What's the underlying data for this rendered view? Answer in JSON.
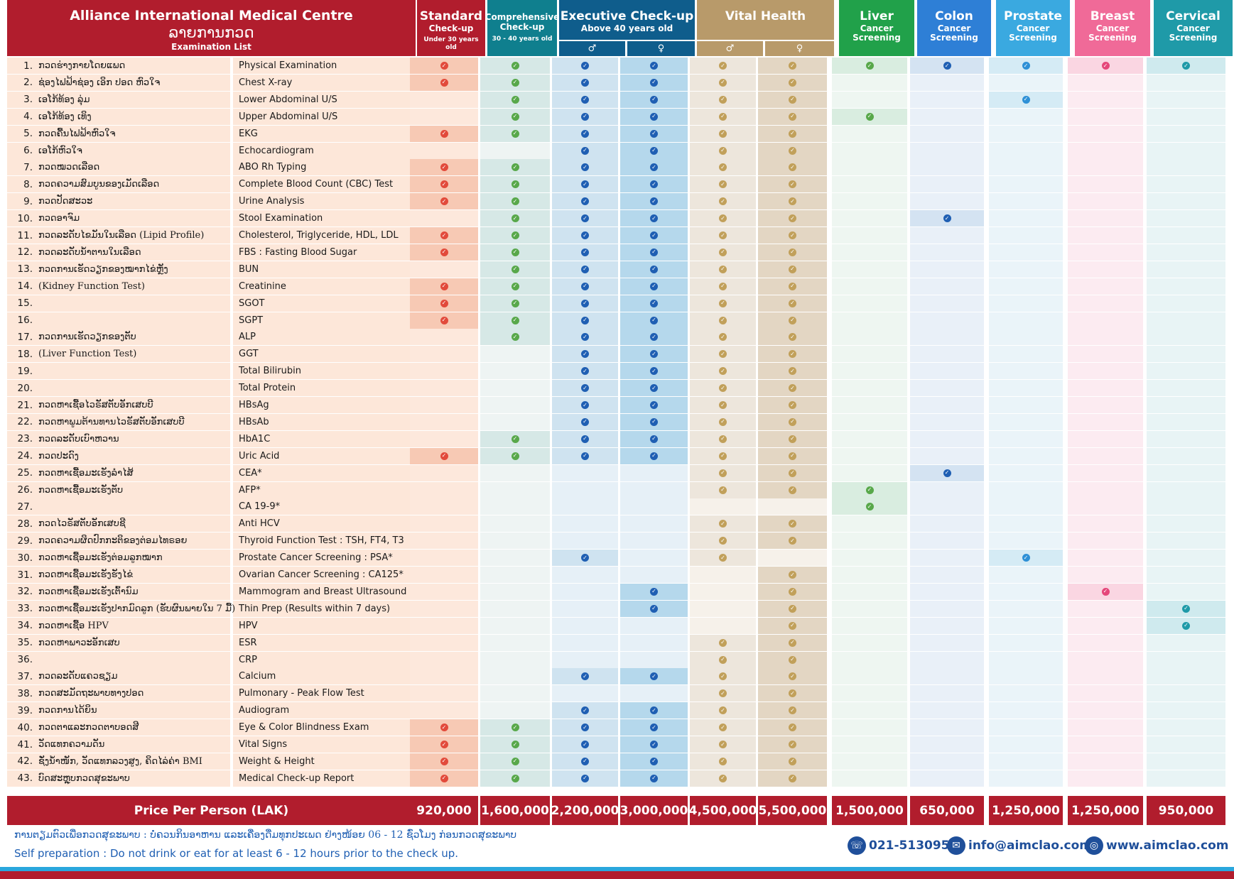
{
  "header": {
    "title": "Alliance International Medical Centre",
    "title_lao": "ລາຍການກວດ",
    "subtitle": "Examination List"
  },
  "packages": [
    {
      "name": "Standard",
      "line1": "Check-up",
      "line2": "Under 30 years old",
      "color": "#b11d2d",
      "fill": "#f7c9b4",
      "mark": "#e24a3b"
    },
    {
      "name": "",
      "line1": "Comprehensive",
      "line2": "Check-up",
      "line3": "30 - 40 years old",
      "color": "#0f7f8e",
      "fill": "#d6e8e6",
      "mark": "#58a84a"
    },
    {
      "name": "Executive Check-up",
      "line1": "Above 40 years old",
      "color": "#0f5d8c",
      "fill": "#cfe3f0",
      "mark": "#1f5fb3"
    },
    {
      "name": "Vital Health",
      "color": "#b89a6a",
      "fill": "#ede6dc",
      "mark": "#c1a05a"
    },
    {
      "name": "Liver",
      "line1": "Cancer",
      "line2": "Screening",
      "color": "#21a14a",
      "fill": "#d9ede0",
      "mark": "#58a84a"
    },
    {
      "name": "Colon",
      "line1": "Cancer",
      "line2": "Screening",
      "color": "#2e7fd6",
      "fill": "#d4e3f2",
      "mark": "#1f5fb3"
    },
    {
      "name": "Prostate",
      "line1": "Cancer",
      "line2": "Screening",
      "color": "#3aa9e0",
      "fill": "#d5ebf5",
      "mark": "#2e90d6"
    },
    {
      "name": "Breast",
      "line1": "Cancer",
      "line2": "Screening",
      "color": "#f06a98",
      "fill": "#fad6e2",
      "mark": "#e5467a"
    },
    {
      "name": "Cervical",
      "line1": "Cancer",
      "line2": "Screening",
      "color": "#1f9aa8",
      "fill": "#cfeaee",
      "mark": "#1f9aa8"
    }
  ],
  "gender_icons": {
    "male": "male-icon",
    "female": "female-icon"
  },
  "price_label": "Price Per Person (LAK)",
  "prices": [
    "920,000",
    "1,600,000",
    "2,200,000",
    "3,000,000",
    "4,500,000",
    "5,500,000",
    "1,500,000",
    "650,000",
    "1,250,000",
    "1,250,000",
    "950,000"
  ],
  "rows": [
    {
      "n": "1.",
      "lao": "ກວດຮ່າງກາຍໂດຍແພດ",
      "en": "Physical Examination",
      "m": [
        1,
        1,
        1,
        1,
        1,
        1,
        1,
        1,
        1,
        1,
        1
      ]
    },
    {
      "n": "2.",
      "lao": "ຊ່ອງໄຟຟ້າຊ່ອງ ເອິກ ປອດ ຫົວໃຈ",
      "en": "Chest X-ray",
      "m": [
        1,
        1,
        1,
        1,
        1,
        1,
        0,
        0,
        0,
        0,
        0
      ]
    },
    {
      "n": "3.",
      "lao": "ເອໂກ້ທ້ອງ ລຸ່ມ",
      "en": "Lower Abdominal U/S",
      "m": [
        0,
        1,
        1,
        1,
        1,
        1,
        0,
        0,
        1,
        0,
        0
      ]
    },
    {
      "n": "4.",
      "lao": "ເອໂກ້ທ້ອງ ເທິງ",
      "en": "Upper Abdominal U/S",
      "m": [
        0,
        1,
        1,
        1,
        1,
        1,
        1,
        0,
        0,
        0,
        0
      ]
    },
    {
      "n": "5.",
      "lao": "ກວດຄື້ນໄຟຟ້າຫົວໃຈ",
      "en": "EKG",
      "m": [
        1,
        1,
        1,
        1,
        1,
        1,
        0,
        0,
        0,
        0,
        0
      ]
    },
    {
      "n": "6.",
      "lao": "ເອໂກ້ຫົວໃຈ",
      "en": "Echocardiogram",
      "m": [
        0,
        0,
        1,
        1,
        1,
        1,
        0,
        0,
        0,
        0,
        0
      ]
    },
    {
      "n": "7.",
      "lao": "ກວດໝວດເລືອດ",
      "en": "ABO Rh Typing",
      "m": [
        1,
        1,
        1,
        1,
        1,
        1,
        0,
        0,
        0,
        0,
        0
      ]
    },
    {
      "n": "8.",
      "lao": "ກວດຄວາມສົມບູນຂອງເມັດເລືອດ",
      "en": "Complete Blood Count (CBC) Test",
      "m": [
        1,
        1,
        1,
        1,
        1,
        1,
        0,
        0,
        0,
        0,
        0
      ]
    },
    {
      "n": "9.",
      "lao": "ກວດປັດສະວະ",
      "en": "Urine Analysis",
      "m": [
        1,
        1,
        1,
        1,
        1,
        1,
        0,
        0,
        0,
        0,
        0
      ]
    },
    {
      "n": "10.",
      "lao": "ກວດອາຈົມ",
      "en": "Stool Examination",
      "m": [
        0,
        1,
        1,
        1,
        1,
        1,
        0,
        1,
        0,
        0,
        0
      ]
    },
    {
      "n": "11.",
      "lao": "ກວດລະດັບໄຂມັນໃນເລືອດ (Lipid Profile)",
      "en": "Cholesterol, Triglyceride, HDL, LDL",
      "m": [
        1,
        1,
        1,
        1,
        1,
        1,
        0,
        0,
        0,
        0,
        0
      ]
    },
    {
      "n": "12.",
      "lao": "ກວດລະດັບນ້ຳຕານໃນເລືອດ",
      "en": "FBS : Fasting Blood Sugar",
      "m": [
        1,
        1,
        1,
        1,
        1,
        1,
        0,
        0,
        0,
        0,
        0
      ]
    },
    {
      "n": "13.",
      "lao": "ກວດການເຮັດວຽກຂອງໝາກໄຂ່ຫຼັງ",
      "en": "BUN",
      "m": [
        0,
        1,
        1,
        1,
        1,
        1,
        0,
        0,
        0,
        0,
        0
      ]
    },
    {
      "n": "14.",
      "lao": "(Kidney Function Test)",
      "en": "Creatinine",
      "m": [
        1,
        1,
        1,
        1,
        1,
        1,
        0,
        0,
        0,
        0,
        0
      ]
    },
    {
      "n": "15.",
      "lao": "",
      "en": "SGOT",
      "m": [
        1,
        1,
        1,
        1,
        1,
        1,
        0,
        0,
        0,
        0,
        0
      ]
    },
    {
      "n": "16.",
      "lao": "",
      "en": "SGPT",
      "m": [
        1,
        1,
        1,
        1,
        1,
        1,
        0,
        0,
        0,
        0,
        0
      ]
    },
    {
      "n": "17.",
      "lao": "ກວດການເຮັດວຽກຂອງຕັບ",
      "en": "ALP",
      "m": [
        0,
        1,
        1,
        1,
        1,
        1,
        0,
        0,
        0,
        0,
        0
      ]
    },
    {
      "n": "18.",
      "lao": "(Liver Function Test)",
      "en": "GGT",
      "m": [
        0,
        0,
        1,
        1,
        1,
        1,
        0,
        0,
        0,
        0,
        0
      ]
    },
    {
      "n": "19.",
      "lao": "",
      "en": "Total Bilirubin",
      "m": [
        0,
        0,
        1,
        1,
        1,
        1,
        0,
        0,
        0,
        0,
        0
      ]
    },
    {
      "n": "20.",
      "lao": "",
      "en": "Total Protein",
      "m": [
        0,
        0,
        1,
        1,
        1,
        1,
        0,
        0,
        0,
        0,
        0
      ]
    },
    {
      "n": "21.",
      "lao": "ກວດຫາເຊື້ອໄວຣັສຕັບອັກເສບບີ",
      "en": "HBsAg",
      "m": [
        0,
        0,
        1,
        1,
        1,
        1,
        0,
        0,
        0,
        0,
        0
      ]
    },
    {
      "n": "22.",
      "lao": "ກວດຫາພູມຕ້ານທານໄວຣັສຕັບອັກເສບບີ",
      "en": "HBsAb",
      "m": [
        0,
        0,
        1,
        1,
        1,
        1,
        0,
        0,
        0,
        0,
        0
      ]
    },
    {
      "n": "23.",
      "lao": "ກວດລະດັບເບົາຫວານ",
      "en": "HbA1C",
      "m": [
        0,
        1,
        1,
        1,
        1,
        1,
        0,
        0,
        0,
        0,
        0
      ]
    },
    {
      "n": "24.",
      "lao": "ກວດປະດົງ",
      "en": "Uric Acid",
      "m": [
        1,
        1,
        1,
        1,
        1,
        1,
        0,
        0,
        0,
        0,
        0
      ]
    },
    {
      "n": "25.",
      "lao": "ກວດຫາເຊື້ອມະເຮັງລຳໄສ້",
      "en": "CEA*",
      "m": [
        0,
        0,
        0,
        0,
        1,
        1,
        0,
        1,
        0,
        0,
        0
      ]
    },
    {
      "n": "26.",
      "lao": "ກວດຫາເຊື້ອມະເຮັງຕັບ",
      "en": "AFP*",
      "m": [
        0,
        0,
        0,
        0,
        1,
        1,
        1,
        0,
        0,
        0,
        0
      ]
    },
    {
      "n": "27.",
      "lao": "",
      "en": "CA 19-9*",
      "m": [
        0,
        0,
        0,
        0,
        0,
        0,
        1,
        0,
        0,
        0,
        0
      ]
    },
    {
      "n": "28.",
      "lao": "ກວດໄວຣັສຕັບອັກເສບຊີ",
      "en": "Anti HCV",
      "m": [
        0,
        0,
        0,
        0,
        1,
        1,
        0,
        0,
        0,
        0,
        0
      ]
    },
    {
      "n": "29.",
      "lao": "ກວດຄວາມຜິດປົກກະຕິຂອງຕ່ອມໄທຣອຍ",
      "en": "Thyroid Function Test : TSH, FT4, T3",
      "m": [
        0,
        0,
        0,
        0,
        1,
        1,
        0,
        0,
        0,
        0,
        0
      ]
    },
    {
      "n": "30.",
      "lao": "ກວດຫາເຊື້ອມະເຮັງຕ່ອມລູກໝາກ",
      "en": "Prostate Cancer Screening : PSA*",
      "m": [
        0,
        0,
        1,
        0,
        1,
        0,
        0,
        0,
        1,
        0,
        0
      ]
    },
    {
      "n": "31.",
      "lao": "ກວດຫາເຊື້ອມະເຮັງຮັງໄຂ່",
      "en": "Ovarian Cancer Screening : CA125*",
      "m": [
        0,
        0,
        0,
        0,
        0,
        1,
        0,
        0,
        0,
        0,
        0
      ]
    },
    {
      "n": "32.",
      "lao": "ກວດຫາເຊື້ອມະເຮັງເຕົ້ານົມ",
      "en": "Mammogram and Breast Ultrasound",
      "m": [
        0,
        0,
        0,
        1,
        0,
        1,
        0,
        0,
        0,
        1,
        0
      ]
    },
    {
      "n": "33.",
      "lao": "ກວດຫາເຊື້ອມະເຮັງປາກມົດລູກ (ຮັບຜົນພາຍໃນ 7 ມື້)",
      "en": "Thin Prep (Results within 7 days)",
      "m": [
        0,
        0,
        0,
        1,
        0,
        1,
        0,
        0,
        0,
        0,
        1
      ]
    },
    {
      "n": "34.",
      "lao": "ກວດຫາເຊື້ອ HPV",
      "en": "HPV",
      "m": [
        0,
        0,
        0,
        0,
        0,
        1,
        0,
        0,
        0,
        0,
        1
      ]
    },
    {
      "n": "35.",
      "lao": "ກວດຫາພາວະອັກເສບ",
      "en": "ESR",
      "m": [
        0,
        0,
        0,
        0,
        1,
        1,
        0,
        0,
        0,
        0,
        0
      ]
    },
    {
      "n": "36.",
      "lao": "",
      "en": "CRP",
      "m": [
        0,
        0,
        0,
        0,
        1,
        1,
        0,
        0,
        0,
        0,
        0
      ]
    },
    {
      "n": "37.",
      "lao": "ກວດລະດັບແຄວຊຽມ",
      "en": "Calcium",
      "m": [
        0,
        0,
        1,
        1,
        1,
        1,
        0,
        0,
        0,
        0,
        0
      ]
    },
    {
      "n": "38.",
      "lao": "ກວດສະມັດຖະພາບທາງປອດ",
      "en": "Pulmonary - Peak Flow Test",
      "m": [
        0,
        0,
        0,
        0,
        1,
        1,
        0,
        0,
        0,
        0,
        0
      ]
    },
    {
      "n": "39.",
      "lao": "ກວດການໄດ້ຍິນ",
      "en": "Audiogram",
      "m": [
        0,
        0,
        1,
        1,
        1,
        1,
        0,
        0,
        0,
        0,
        0
      ]
    },
    {
      "n": "40.",
      "lao": "ກວດຕາແລະກວດຕາບອດສີ",
      "en": "Eye & Color Blindness Exam",
      "m": [
        1,
        1,
        1,
        1,
        1,
        1,
        0,
        0,
        0,
        0,
        0
      ]
    },
    {
      "n": "41.",
      "lao": "ວັດແທກຄວາມດັນ",
      "en": "Vital Signs",
      "m": [
        1,
        1,
        1,
        1,
        1,
        1,
        0,
        0,
        0,
        0,
        0
      ]
    },
    {
      "n": "42.",
      "lao": "ຊັ່ງນ້ຳໜັກ, ວັດແທກລວງສູງ, ຄິດໄລ່ຄ່າ BMI",
      "en": "Weight & Height",
      "m": [
        1,
        1,
        1,
        1,
        1,
        1,
        0,
        0,
        0,
        0,
        0
      ]
    },
    {
      "n": "43.",
      "lao": "ບົດສະຫຼຸບກວດສຸຂະພາບ",
      "en": "Medical Check-up Report",
      "m": [
        1,
        1,
        1,
        1,
        1,
        1,
        0,
        0,
        0,
        0,
        0
      ]
    }
  ],
  "footer": {
    "note_lao": "ການຕຽມຕົວເພື່ອກວດສຸຂະພາບ : ບໍ່ຄວນກິນອາຫານ ແລະເຄື່ອງດື່ມທຸກປະເພດ ຢ່າງໜ້ອຍ 06 - 12 ຊົ່ວໂມງ ກ່ອນກວດສຸຂະພາບ",
    "note_en": "Self preparation : Do not drink or eat for at least 6 - 12 hours prior to the check up.",
    "phone": "021-513095",
    "email": "info@aimclao.com",
    "web": "www.aimclao.com"
  }
}
